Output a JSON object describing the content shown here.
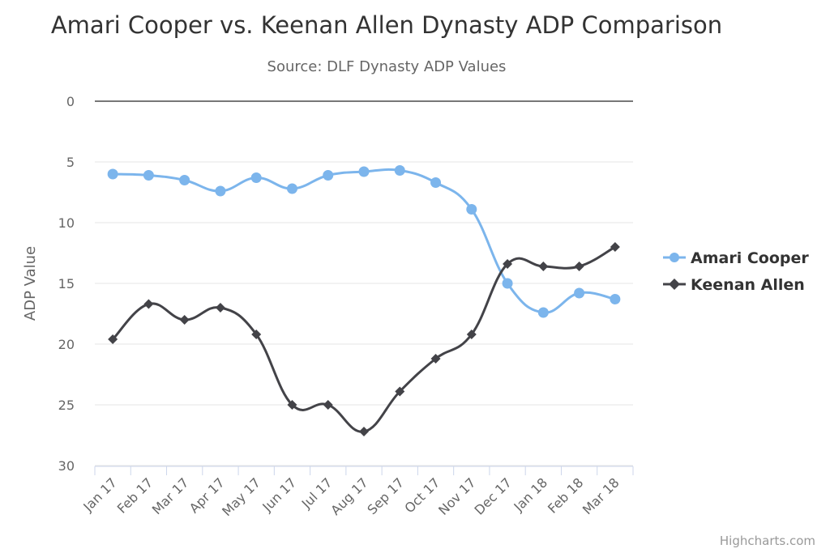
{
  "chart_data": {
    "type": "line",
    "title": "Amari Cooper vs. Keenan Allen Dynasty ADP Comparison",
    "subtitle": "Source: DLF Dynasty ADP Values",
    "ylabel": "ADP Value",
    "xlabel": "",
    "ylim": [
      0,
      30
    ],
    "y_reversed": true,
    "y_ticks": [
      "0",
      "5",
      "10",
      "15",
      "20",
      "25",
      "30"
    ],
    "grid": true,
    "legend_position": "right",
    "smooth": true,
    "categories": [
      "Jan 17",
      "Feb 17",
      "Mar 17",
      "Apr 17",
      "May 17",
      "Jun 17",
      "Jul 17",
      "Aug 17",
      "Sep 17",
      "Oct 17",
      "Nov 17",
      "Dec 17",
      "Jan 18",
      "Feb 18",
      "Mar 18"
    ],
    "series": [
      {
        "name": "Amari Cooper",
        "color": "#7cb5ec",
        "marker": "circle",
        "values": [
          6.0,
          6.1,
          6.5,
          7.4,
          6.3,
          7.2,
          6.1,
          5.8,
          5.7,
          6.7,
          8.9,
          15.0,
          17.4,
          15.8,
          16.3
        ]
      },
      {
        "name": "Keenan Allen",
        "color": "#434348",
        "marker": "diamond",
        "values": [
          19.6,
          16.7,
          18.0,
          17.0,
          19.2,
          25.0,
          25.0,
          27.2,
          23.9,
          21.2,
          19.2,
          13.4,
          13.6,
          13.6,
          12.0
        ]
      }
    ],
    "credits": "Highcharts.com"
  }
}
